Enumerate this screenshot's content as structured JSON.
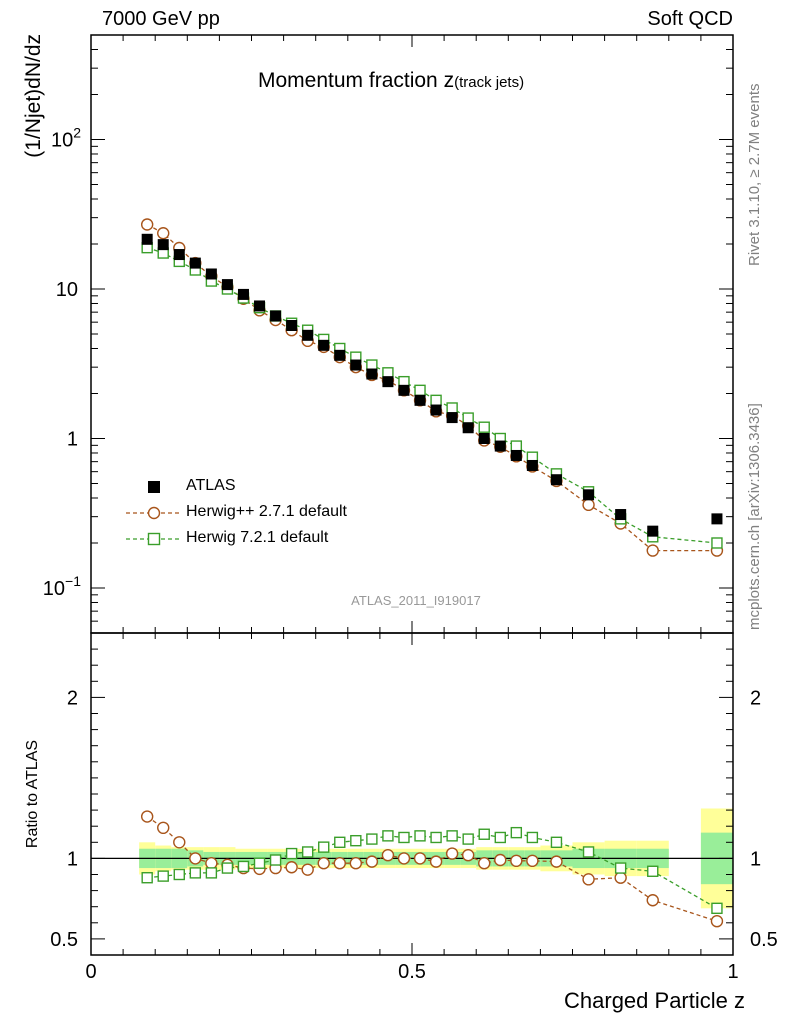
{
  "header": {
    "left": "7000 GeV pp",
    "right": "Soft QCD"
  },
  "side_labels": {
    "rivet": "Rivet 3.1.10, ≥ 2.7M events",
    "mcplots": "mcplots.cern.ch [arXiv:1306.3436]"
  },
  "chart_data": {
    "type": "scatter",
    "title": "Momentum fraction",
    "title_symbol": "z",
    "title_subscript": "(track jets)",
    "watermark": "ATLAS_2011_I919017",
    "xlabel": "Charged Particle z",
    "ylabel_main": "(1/Njet)dN/dz",
    "ylabel_ratio": "Ratio to ATLAS",
    "xlim": [
      0,
      1
    ],
    "ylim_main": [
      0.05,
      500
    ],
    "ylim_ratio": [
      0.4,
      2.4
    ],
    "yscale_main": "log",
    "x_ticks": [
      "0",
      "0.5",
      "1"
    ],
    "y_ticks_main": [
      {
        "base": "10",
        "exp": "−1"
      },
      {
        "base": "1",
        "exp": ""
      },
      {
        "base": "10",
        "exp": ""
      },
      {
        "base": "10",
        "exp": "2"
      }
    ],
    "y_ticks_ratio": [
      "0.5",
      "1",
      "2"
    ],
    "legend_position": "lower-left",
    "series": [
      {
        "name": "ATLAS",
        "color": "#000000",
        "marker": "filled-square",
        "x": [
          0.0875,
          0.1125,
          0.1375,
          0.1625,
          0.1875,
          0.2125,
          0.2375,
          0.2625,
          0.2875,
          0.3125,
          0.3375,
          0.3625,
          0.3875,
          0.4125,
          0.4375,
          0.4625,
          0.4875,
          0.5125,
          0.5375,
          0.5625,
          0.5875,
          0.6125,
          0.6375,
          0.6625,
          0.6875,
          0.725,
          0.775,
          0.825,
          0.875,
          0.975
        ],
        "values": [
          21.5,
          19.8,
          17.0,
          14.9,
          12.6,
          10.7,
          9.2,
          7.7,
          6.6,
          5.7,
          4.9,
          4.2,
          3.6,
          3.1,
          2.7,
          2.4,
          2.1,
          1.8,
          1.55,
          1.38,
          1.18,
          1.0,
          0.89,
          0.77,
          0.66,
          0.53,
          0.42,
          0.31,
          0.24,
          0.29
        ]
      },
      {
        "name": "Herwig++ 2.7.1 default",
        "color": "#a8551b",
        "marker": "open-circle",
        "x": [
          0.0875,
          0.1125,
          0.1375,
          0.1625,
          0.1875,
          0.2125,
          0.2375,
          0.2625,
          0.2875,
          0.3125,
          0.3375,
          0.3625,
          0.3875,
          0.4125,
          0.4375,
          0.4625,
          0.4875,
          0.5125,
          0.5375,
          0.5625,
          0.5875,
          0.6125,
          0.6375,
          0.6625,
          0.6875,
          0.725,
          0.775,
          0.825,
          0.875,
          0.975
        ],
        "values": [
          27.0,
          23.6,
          18.8,
          14.9,
          12.2,
          10.3,
          8.6,
          7.2,
          6.2,
          5.3,
          4.5,
          4.1,
          3.5,
          3.0,
          2.66,
          2.45,
          2.1,
          1.8,
          1.52,
          1.42,
          1.22,
          0.97,
          0.88,
          0.76,
          0.65,
          0.52,
          0.36,
          0.27,
          0.178,
          0.178
        ]
      },
      {
        "name": "Herwig 7.2.1 default",
        "color": "#3a9e2a",
        "marker": "open-square",
        "x": [
          0.0875,
          0.1125,
          0.1375,
          0.1625,
          0.1875,
          0.2125,
          0.2375,
          0.2625,
          0.2875,
          0.3125,
          0.3375,
          0.3625,
          0.3875,
          0.4125,
          0.4375,
          0.4625,
          0.4875,
          0.5125,
          0.5375,
          0.5625,
          0.5875,
          0.6125,
          0.6375,
          0.6625,
          0.6875,
          0.725,
          0.775,
          0.825,
          0.875,
          0.975
        ],
        "values": [
          18.9,
          17.4,
          15.3,
          13.4,
          11.3,
          10.0,
          8.7,
          7.5,
          6.6,
          5.9,
          5.3,
          4.6,
          4.0,
          3.5,
          3.1,
          2.75,
          2.4,
          2.1,
          1.8,
          1.6,
          1.37,
          1.19,
          1.0,
          0.89,
          0.75,
          0.58,
          0.44,
          0.29,
          0.22,
          0.2
        ]
      }
    ],
    "ratio_series": [
      {
        "name": "Herwig++ 2.7.1 default",
        "x": [
          0.0875,
          0.1125,
          0.1375,
          0.1625,
          0.1875,
          0.2125,
          0.2375,
          0.2625,
          0.2875,
          0.3125,
          0.3375,
          0.3625,
          0.3875,
          0.4125,
          0.4375,
          0.4625,
          0.4875,
          0.5125,
          0.5375,
          0.5625,
          0.5875,
          0.6125,
          0.6375,
          0.6625,
          0.6875,
          0.725,
          0.775,
          0.825,
          0.875,
          0.975
        ],
        "values": [
          1.26,
          1.19,
          1.1,
          1.0,
          0.97,
          0.96,
          0.94,
          0.935,
          0.94,
          0.945,
          0.93,
          0.97,
          0.97,
          0.97,
          0.98,
          1.02,
          1.0,
          1.0,
          0.98,
          1.03,
          1.02,
          0.97,
          0.99,
          0.985,
          0.985,
          0.98,
          0.87,
          0.88,
          0.74,
          0.61
        ]
      },
      {
        "name": "Herwig 7.2.1 default",
        "x": [
          0.0875,
          0.1125,
          0.1375,
          0.1625,
          0.1875,
          0.2125,
          0.2375,
          0.2625,
          0.2875,
          0.3125,
          0.3375,
          0.3625,
          0.3875,
          0.4125,
          0.4375,
          0.4625,
          0.4875,
          0.5125,
          0.5375,
          0.5625,
          0.5875,
          0.6125,
          0.6375,
          0.6625,
          0.6875,
          0.725,
          0.775,
          0.825,
          0.875,
          0.975
        ],
        "values": [
          0.88,
          0.89,
          0.9,
          0.91,
          0.91,
          0.94,
          0.95,
          0.97,
          0.99,
          1.03,
          1.04,
          1.07,
          1.1,
          1.11,
          1.12,
          1.14,
          1.13,
          1.14,
          1.13,
          1.14,
          1.12,
          1.15,
          1.13,
          1.16,
          1.13,
          1.1,
          1.04,
          0.94,
          0.92,
          0.69
        ]
      }
    ],
    "uncertainty_bands": {
      "inner_color": "#99ee99",
      "outer_color": "#ffff99",
      "x_edges": [
        0.075,
        0.1,
        0.125,
        0.15,
        0.175,
        0.2,
        0.225,
        0.25,
        0.275,
        0.3,
        0.325,
        0.35,
        0.375,
        0.4,
        0.425,
        0.45,
        0.475,
        0.5,
        0.525,
        0.55,
        0.575,
        0.6,
        0.625,
        0.65,
        0.675,
        0.7,
        0.75,
        0.8,
        0.85,
        0.9,
        0.95,
        1.0
      ],
      "inner": [
        0.06,
        0.06,
        0.06,
        0.05,
        0.04,
        0.04,
        0.04,
        0.04,
        0.04,
        0.04,
        0.04,
        0.04,
        0.04,
        0.04,
        0.04,
        0.04,
        0.04,
        0.04,
        0.04,
        0.04,
        0.04,
        0.05,
        0.05,
        0.05,
        0.05,
        0.05,
        0.06,
        0.06,
        0.06,
        0.0,
        0.16
      ],
      "outer": [
        0.1,
        0.08,
        0.07,
        0.07,
        0.07,
        0.07,
        0.06,
        0.06,
        0.06,
        0.06,
        0.06,
        0.06,
        0.06,
        0.06,
        0.06,
        0.06,
        0.06,
        0.06,
        0.06,
        0.06,
        0.06,
        0.07,
        0.07,
        0.07,
        0.07,
        0.08,
        0.1,
        0.11,
        0.11,
        0.0,
        0.31
      ]
    }
  }
}
